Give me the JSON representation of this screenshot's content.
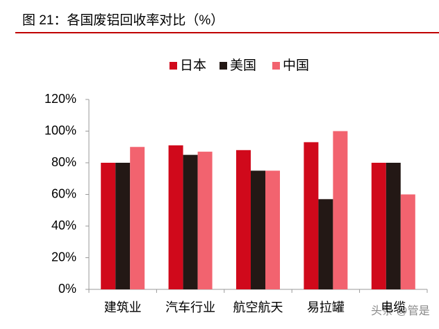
{
  "chart_data": {
    "type": "bar",
    "title": "图 21：各国废铝回收率对比（%）",
    "categories": [
      "建筑业",
      "汽车行业",
      "航空航天",
      "易拉罐",
      "电缆"
    ],
    "series": [
      {
        "name": "日本",
        "color": "#d0091b",
        "values": [
          80,
          91,
          88,
          93,
          80
        ]
      },
      {
        "name": "美国",
        "color": "#231815",
        "values": [
          80,
          85,
          75,
          57,
          80
        ]
      },
      {
        "name": "中国",
        "color": "#f2636f",
        "values": [
          90,
          87,
          75,
          100,
          60
        ]
      }
    ],
    "ylim": [
      0,
      120
    ],
    "yticks": [
      {
        "value": 0,
        "label": "0%"
      },
      {
        "value": 20,
        "label": "20%"
      },
      {
        "value": 40,
        "label": "40%"
      },
      {
        "value": 60,
        "label": "60%"
      },
      {
        "value": 80,
        "label": "80%"
      },
      {
        "value": 100,
        "label": "100%"
      },
      {
        "value": 120,
        "label": "120%"
      }
    ],
    "legend": "top",
    "watermark": "头条 @管是"
  }
}
